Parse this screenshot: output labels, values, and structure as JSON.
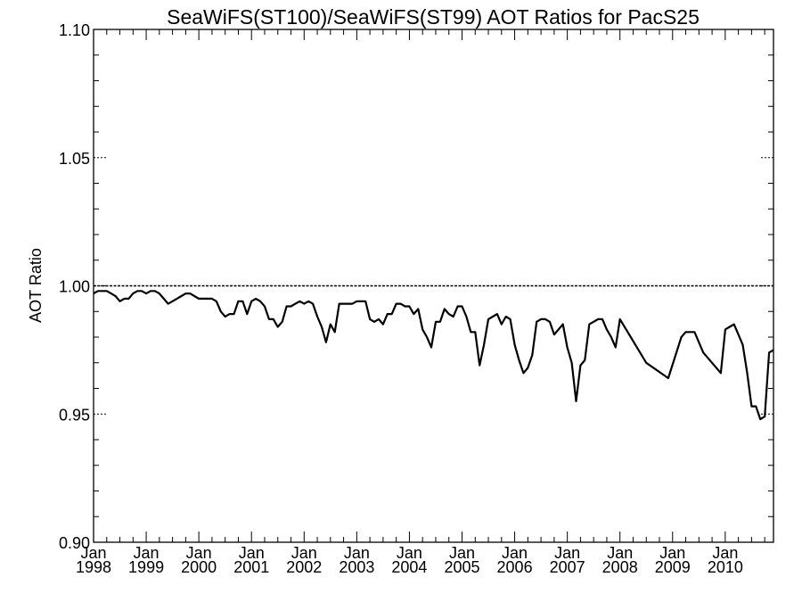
{
  "chart_data": {
    "type": "line",
    "title": "SeaWiFS(ST100)/SeaWiFS(ST99)  AOT Ratios for PacS25",
    "xlabel": "",
    "ylabel": "AOT Ratio",
    "ylim": [
      0.9,
      1.1
    ],
    "xlim": [
      "1998-01",
      "2010-12"
    ],
    "yticks": [
      "0.90",
      "0.95",
      "1.00",
      "1.05",
      "1.10"
    ],
    "xticks": [
      {
        "month": "Jan",
        "year": "1998"
      },
      {
        "month": "Jan",
        "year": "1999"
      },
      {
        "month": "Jan",
        "year": "2000"
      },
      {
        "month": "Jan",
        "year": "2001"
      },
      {
        "month": "Jan",
        "year": "2002"
      },
      {
        "month": "Jan",
        "year": "2003"
      },
      {
        "month": "Jan",
        "year": "2004"
      },
      {
        "month": "Jan",
        "year": "2005"
      },
      {
        "month": "Jan",
        "year": "2006"
      },
      {
        "month": "Jan",
        "year": "2007"
      },
      {
        "month": "Jan",
        "year": "2008"
      },
      {
        "month": "Jan",
        "year": "2009"
      },
      {
        "month": "Jan",
        "year": "2010"
      }
    ],
    "reference_line": 1.0,
    "series": [
      {
        "x": [
          "1998-01",
          "1998-02",
          "1998-03",
          "1998-04",
          "1998-05",
          "1998-06",
          "1998-07",
          "1998-08",
          "1998-09",
          "1998-10",
          "1998-11",
          "1998-12",
          "1999-01",
          "1999-02",
          "1999-03",
          "1999-04",
          "1999-05",
          "1999-06",
          "1999-07",
          "1999-08",
          "1999-09",
          "1999-10",
          "1999-11",
          "1999-12",
          "2000-01",
          "2000-02",
          "2000-03",
          "2000-04",
          "2000-05",
          "2000-06",
          "2000-07",
          "2000-08",
          "2000-09",
          "2000-10",
          "2000-11",
          "2000-12",
          "2001-01",
          "2001-02",
          "2001-03",
          "2001-04",
          "2001-05",
          "2001-06",
          "2001-07",
          "2001-08",
          "2001-09",
          "2001-10",
          "2001-11",
          "2001-12",
          "2002-01",
          "2002-02",
          "2002-03",
          "2002-04",
          "2002-05",
          "2002-06",
          "2002-07",
          "2002-08",
          "2002-09",
          "2002-10",
          "2002-11",
          "2002-12",
          "2003-01",
          "2003-02",
          "2003-03",
          "2003-04",
          "2003-05",
          "2003-06",
          "2003-07",
          "2003-08",
          "2003-09",
          "2003-10",
          "2003-11",
          "2003-12",
          "2004-01",
          "2004-02",
          "2004-03",
          "2004-04",
          "2004-05",
          "2004-06",
          "2004-07",
          "2004-08",
          "2004-09",
          "2004-10",
          "2004-11",
          "2004-12",
          "2005-01",
          "2005-02",
          "2005-03",
          "2005-04",
          "2005-05",
          "2005-06",
          "2005-07",
          "2005-08",
          "2005-09",
          "2005-10",
          "2005-11",
          "2005-12",
          "2006-01",
          "2006-02",
          "2006-03",
          "2006-04",
          "2006-05",
          "2006-06",
          "2006-07",
          "2006-08",
          "2006-09",
          "2006-10",
          "2006-11",
          "2006-12",
          "2007-01",
          "2007-02",
          "2007-03",
          "2007-04",
          "2007-05",
          "2007-06",
          "2007-07",
          "2007-08",
          "2007-09",
          "2007-10",
          "2007-11",
          "2007-12",
          "2008-01",
          "2008-07",
          "2008-12",
          "2009-03",
          "2009-04",
          "2009-05",
          "2009-06",
          "2009-08",
          "2009-12",
          "2010-01",
          "2010-02",
          "2010-03",
          "2010-04",
          "2010-05",
          "2010-06",
          "2010-07",
          "2010-08",
          "2010-09",
          "2010-10",
          "2010-11",
          "2010-12"
        ],
        "values": [
          0.997,
          0.998,
          0.998,
          0.998,
          0.997,
          0.996,
          0.994,
          0.995,
          0.995,
          0.997,
          0.998,
          0.998,
          0.997,
          0.998,
          0.998,
          0.997,
          0.995,
          0.993,
          0.994,
          0.995,
          0.996,
          0.997,
          0.997,
          0.996,
          0.995,
          0.995,
          0.995,
          0.995,
          0.994,
          0.99,
          0.988,
          0.989,
          0.989,
          0.994,
          0.994,
          0.989,
          0.994,
          0.995,
          0.994,
          0.992,
          0.987,
          0.987,
          0.984,
          0.986,
          0.992,
          0.992,
          0.993,
          0.994,
          0.993,
          0.994,
          0.993,
          0.988,
          0.984,
          0.978,
          0.985,
          0.982,
          0.993,
          0.993,
          0.993,
          0.993,
          0.994,
          0.994,
          0.994,
          0.987,
          0.986,
          0.987,
          0.985,
          0.989,
          0.989,
          0.993,
          0.993,
          0.992,
          0.992,
          0.989,
          0.991,
          0.983,
          0.98,
          0.976,
          0.986,
          0.986,
          0.991,
          0.989,
          0.988,
          0.992,
          0.992,
          0.988,
          0.982,
          0.982,
          0.969,
          0.977,
          0.987,
          0.988,
          0.989,
          0.985,
          0.988,
          0.987,
          0.977,
          0.971,
          0.966,
          0.968,
          0.973,
          0.986,
          0.987,
          0.987,
          0.986,
          0.981,
          0.983,
          0.985,
          0.976,
          0.97,
          0.955,
          0.969,
          0.971,
          0.985,
          0.986,
          0.987,
          0.987,
          0.983,
          0.98,
          0.976,
          0.987,
          0.97,
          0.964,
          0.98,
          0.982,
          0.982,
          0.982,
          0.974,
          0.966,
          0.983,
          0.984,
          0.985,
          0.981,
          0.977,
          0.966,
          0.953,
          0.953,
          0.948,
          0.949,
          0.974,
          0.975
        ]
      }
    ]
  }
}
